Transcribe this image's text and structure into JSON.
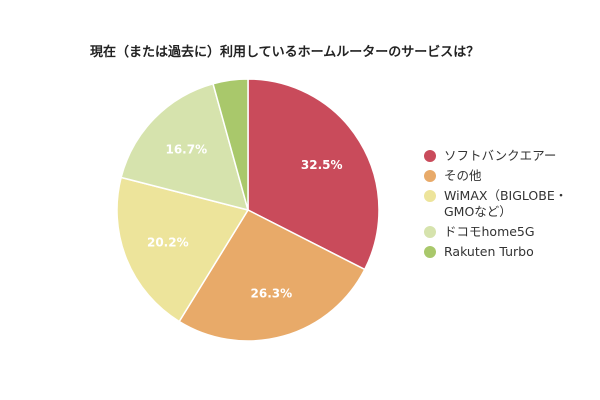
{
  "chart_data": {
    "type": "pie",
    "title": "現在（または過去に）利用しているホームルーターのサービスは？",
    "slices": [
      {
        "name": "ソフトバンクエアー",
        "value": 32.5,
        "label": "32.5%",
        "color": "#c94b5b"
      },
      {
        "name": "その他",
        "value": 26.3,
        "label": "26.3%",
        "color": "#e8aa69"
      },
      {
        "name": "WiMAX（BIGLOBE・GMOなど）",
        "value": 20.2,
        "label": "20.2%",
        "color": "#ede49b"
      },
      {
        "name": "ドコモhome5G",
        "value": 16.7,
        "label": "16.7%",
        "color": "#d6e3ad"
      },
      {
        "name": "Rakuten Turbo",
        "value": 4.3,
        "label": "",
        "color": "#a9c86b"
      }
    ],
    "legend": "right"
  }
}
